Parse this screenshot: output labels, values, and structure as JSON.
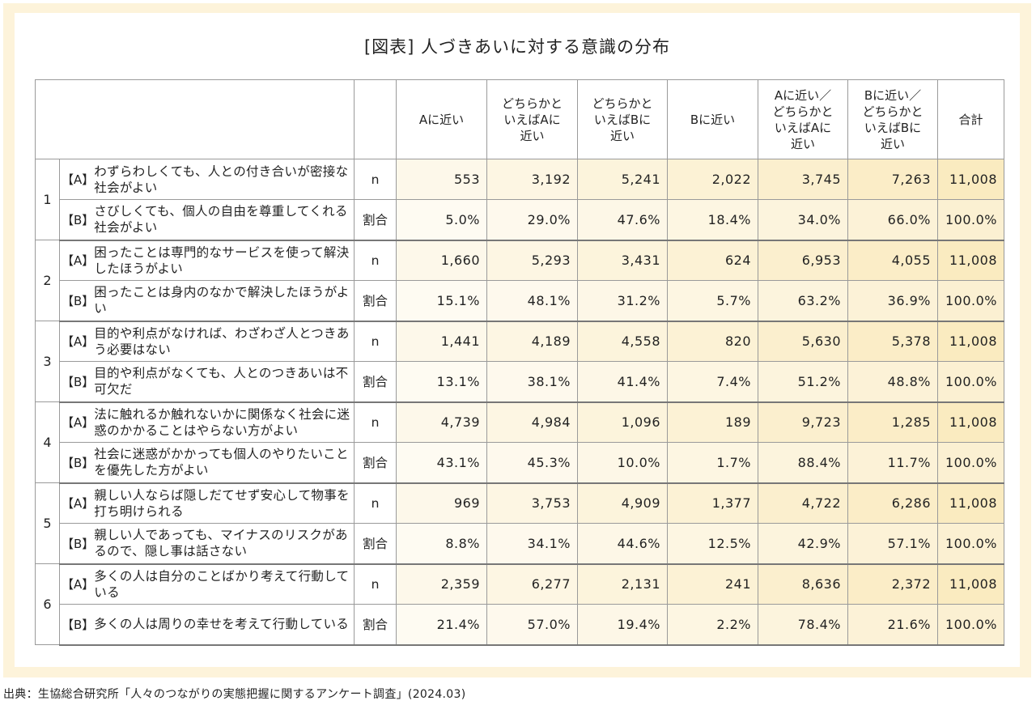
{
  "title": "[図表] 人づきあいに対する意識の分布",
  "source": "出典：生協総合研究所「人々のつながりの実態把握に関するアンケート調査」(2024.03)",
  "colors": {
    "frame": "#fdf3da",
    "grid": "#9a9a9a",
    "shade_dark": "#fbeec9",
    "shade_light": "#fdf8ea",
    "white": "#ffffff"
  },
  "chart_data": {
    "type": "table",
    "title": "[図表] 人づきあいに対する意識の分布",
    "columns": [
      "Aに近い",
      "どちらかといえばAに近い",
      "どちらかといえばBに近い",
      "Bに近い",
      "Aに近い／どちらかといえばAに近い",
      "Bに近い／どちらかといえばBに近い",
      "合計"
    ],
    "column_headers": [
      "Aに近い",
      "どちらかと\nいえばAに\n近い",
      "どちらかと\nいえばBに\n近い",
      "Bに近い",
      "Aに近い／\nどちらかと\nいえばAに\n近い",
      "Bに近い／\nどちらかと\nいえばBに\n近い",
      "合計"
    ],
    "row_kinds": [
      "n",
      "割合"
    ],
    "tag_a": "【A】",
    "tag_b": "【B】",
    "items": [
      {
        "no": "1",
        "a": "わずらわしくても、人との付き合いが密接な社会がよい",
        "b": "さびしくても、個人の自由を尊重してくれる社会がよい",
        "n": [
          "553",
          "3,192",
          "5,241",
          "2,022",
          "3,745",
          "7,263",
          "11,008"
        ],
        "pct": [
          "5.0%",
          "29.0%",
          "47.6%",
          "18.4%",
          "34.0%",
          "66.0%",
          "100.0%"
        ]
      },
      {
        "no": "2",
        "a": "困ったことは専門的なサービスを使って解決したほうがよい",
        "b": "困ったことは身内のなかで解決したほうがよい",
        "n": [
          "1,660",
          "5,293",
          "3,431",
          "624",
          "6,953",
          "4,055",
          "11,008"
        ],
        "pct": [
          "15.1%",
          "48.1%",
          "31.2%",
          "5.7%",
          "63.2%",
          "36.9%",
          "100.0%"
        ]
      },
      {
        "no": "3",
        "a": "目的や利点がなければ、わざわざ人とつきあう必要はない",
        "b": "目的や利点がなくても、人とのつきあいは不可欠だ",
        "n": [
          "1,441",
          "4,189",
          "4,558",
          "820",
          "5,630",
          "5,378",
          "11,008"
        ],
        "pct": [
          "13.1%",
          "38.1%",
          "41.4%",
          "7.4%",
          "51.2%",
          "48.8%",
          "100.0%"
        ]
      },
      {
        "no": "4",
        "a": "法に触れるか触れないかに関係なく社会に迷惑のかかることはやらない方がよい",
        "b": "社会に迷惑がかかっても個人のやりたいことを優先した方がよい",
        "n": [
          "4,739",
          "4,984",
          "1,096",
          "189",
          "9,723",
          "1,285",
          "11,008"
        ],
        "pct": [
          "43.1%",
          "45.3%",
          "10.0%",
          "1.7%",
          "88.4%",
          "11.7%",
          "100.0%"
        ]
      },
      {
        "no": "5",
        "a": "親しい人ならば隠しだてせず安心して物事を打ち明けられる",
        "b": "親しい人であっても、マイナスのリスクがあるので、隠し事は話さない",
        "n": [
          "969",
          "3,753",
          "4,909",
          "1,377",
          "4,722",
          "6,286",
          "11,008"
        ],
        "pct": [
          "8.8%",
          "34.1%",
          "44.6%",
          "12.5%",
          "42.9%",
          "57.1%",
          "100.0%"
        ]
      },
      {
        "no": "6",
        "a": "多くの人は自分のことばかり考えて行動している",
        "b": "多くの人は周りの幸せを考えて行動している",
        "n": [
          "2,359",
          "6,277",
          "2,131",
          "241",
          "8,636",
          "2,372",
          "11,008"
        ],
        "pct": [
          "21.4%",
          "57.0%",
          "19.4%",
          "2.2%",
          "78.4%",
          "21.6%",
          "100.0%"
        ]
      }
    ]
  }
}
